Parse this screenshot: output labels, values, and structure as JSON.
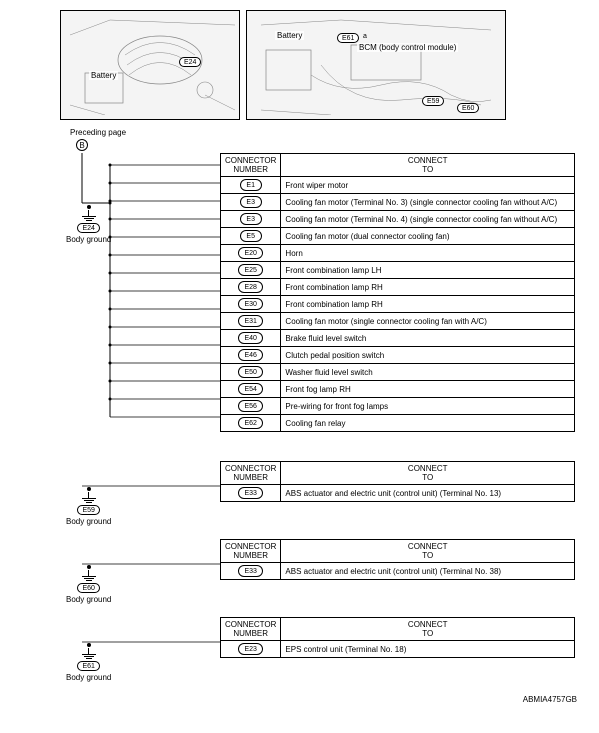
{
  "top_images": {
    "left": {
      "battery_label": "Battery",
      "oval": "E24"
    },
    "right": {
      "battery_label": "Battery",
      "bcm_label": "BCM (body control module)",
      "ovals_top": [
        "E61",
        "a"
      ],
      "ovals_bottom": [
        "E59",
        "E60"
      ]
    }
  },
  "preceding_label": "Preceding page",
  "marker": "B",
  "table_header": {
    "col1": "CONNECTOR\nNUMBER",
    "col2": "CONNECT\nTO"
  },
  "ground_label": "Body ground",
  "section1": {
    "gnd_oval": "E24",
    "rows": [
      {
        "num": "E1",
        "to": "Front wiper motor"
      },
      {
        "num": "E3",
        "to": "Cooling fan motor (Terminal No. 3) (single connector cooling fan without A/C)"
      },
      {
        "num": "E3",
        "to": "Cooling fan motor (Terminal No. 4) (single connector cooling fan without A/C)"
      },
      {
        "num": "E5",
        "to": "Cooling fan motor (dual connector cooling fan)"
      },
      {
        "num": "E20",
        "to": "Horn"
      },
      {
        "num": "E25",
        "to": "Front combination lamp LH"
      },
      {
        "num": "E28",
        "to": "Front combination lamp RH"
      },
      {
        "num": "E30",
        "to": "Front combination lamp RH"
      },
      {
        "num": "E31",
        "to": "Cooling fan motor (single connector cooling fan with A/C)"
      },
      {
        "num": "E40",
        "to": "Brake fluid level switch"
      },
      {
        "num": "E46",
        "to": "Clutch pedal position switch"
      },
      {
        "num": "E50",
        "to": "Washer fluid level switch"
      },
      {
        "num": "E54",
        "to": "Front fog lamp RH"
      },
      {
        "num": "E56",
        "to": "Pre-wiring for front fog lamps"
      },
      {
        "num": "E62",
        "to": "Cooling fan relay"
      }
    ]
  },
  "section2": {
    "gnd_oval": "E59",
    "rows": [
      {
        "num": "E33",
        "to": "ABS actuator and electric unit (control unit) (Terminal No. 13)"
      }
    ]
  },
  "section3": {
    "gnd_oval": "E60",
    "rows": [
      {
        "num": "E33",
        "to": "ABS actuator and electric unit (control unit) (Terminal No. 38)"
      }
    ]
  },
  "section4": {
    "gnd_oval": "E61",
    "rows": [
      {
        "num": "E23",
        "to": "EPS control unit (Terminal No. 18)"
      }
    ]
  },
  "footer": "ABMIA4757GB",
  "colors": {
    "line": "#000000",
    "bg": "#ffffff"
  }
}
